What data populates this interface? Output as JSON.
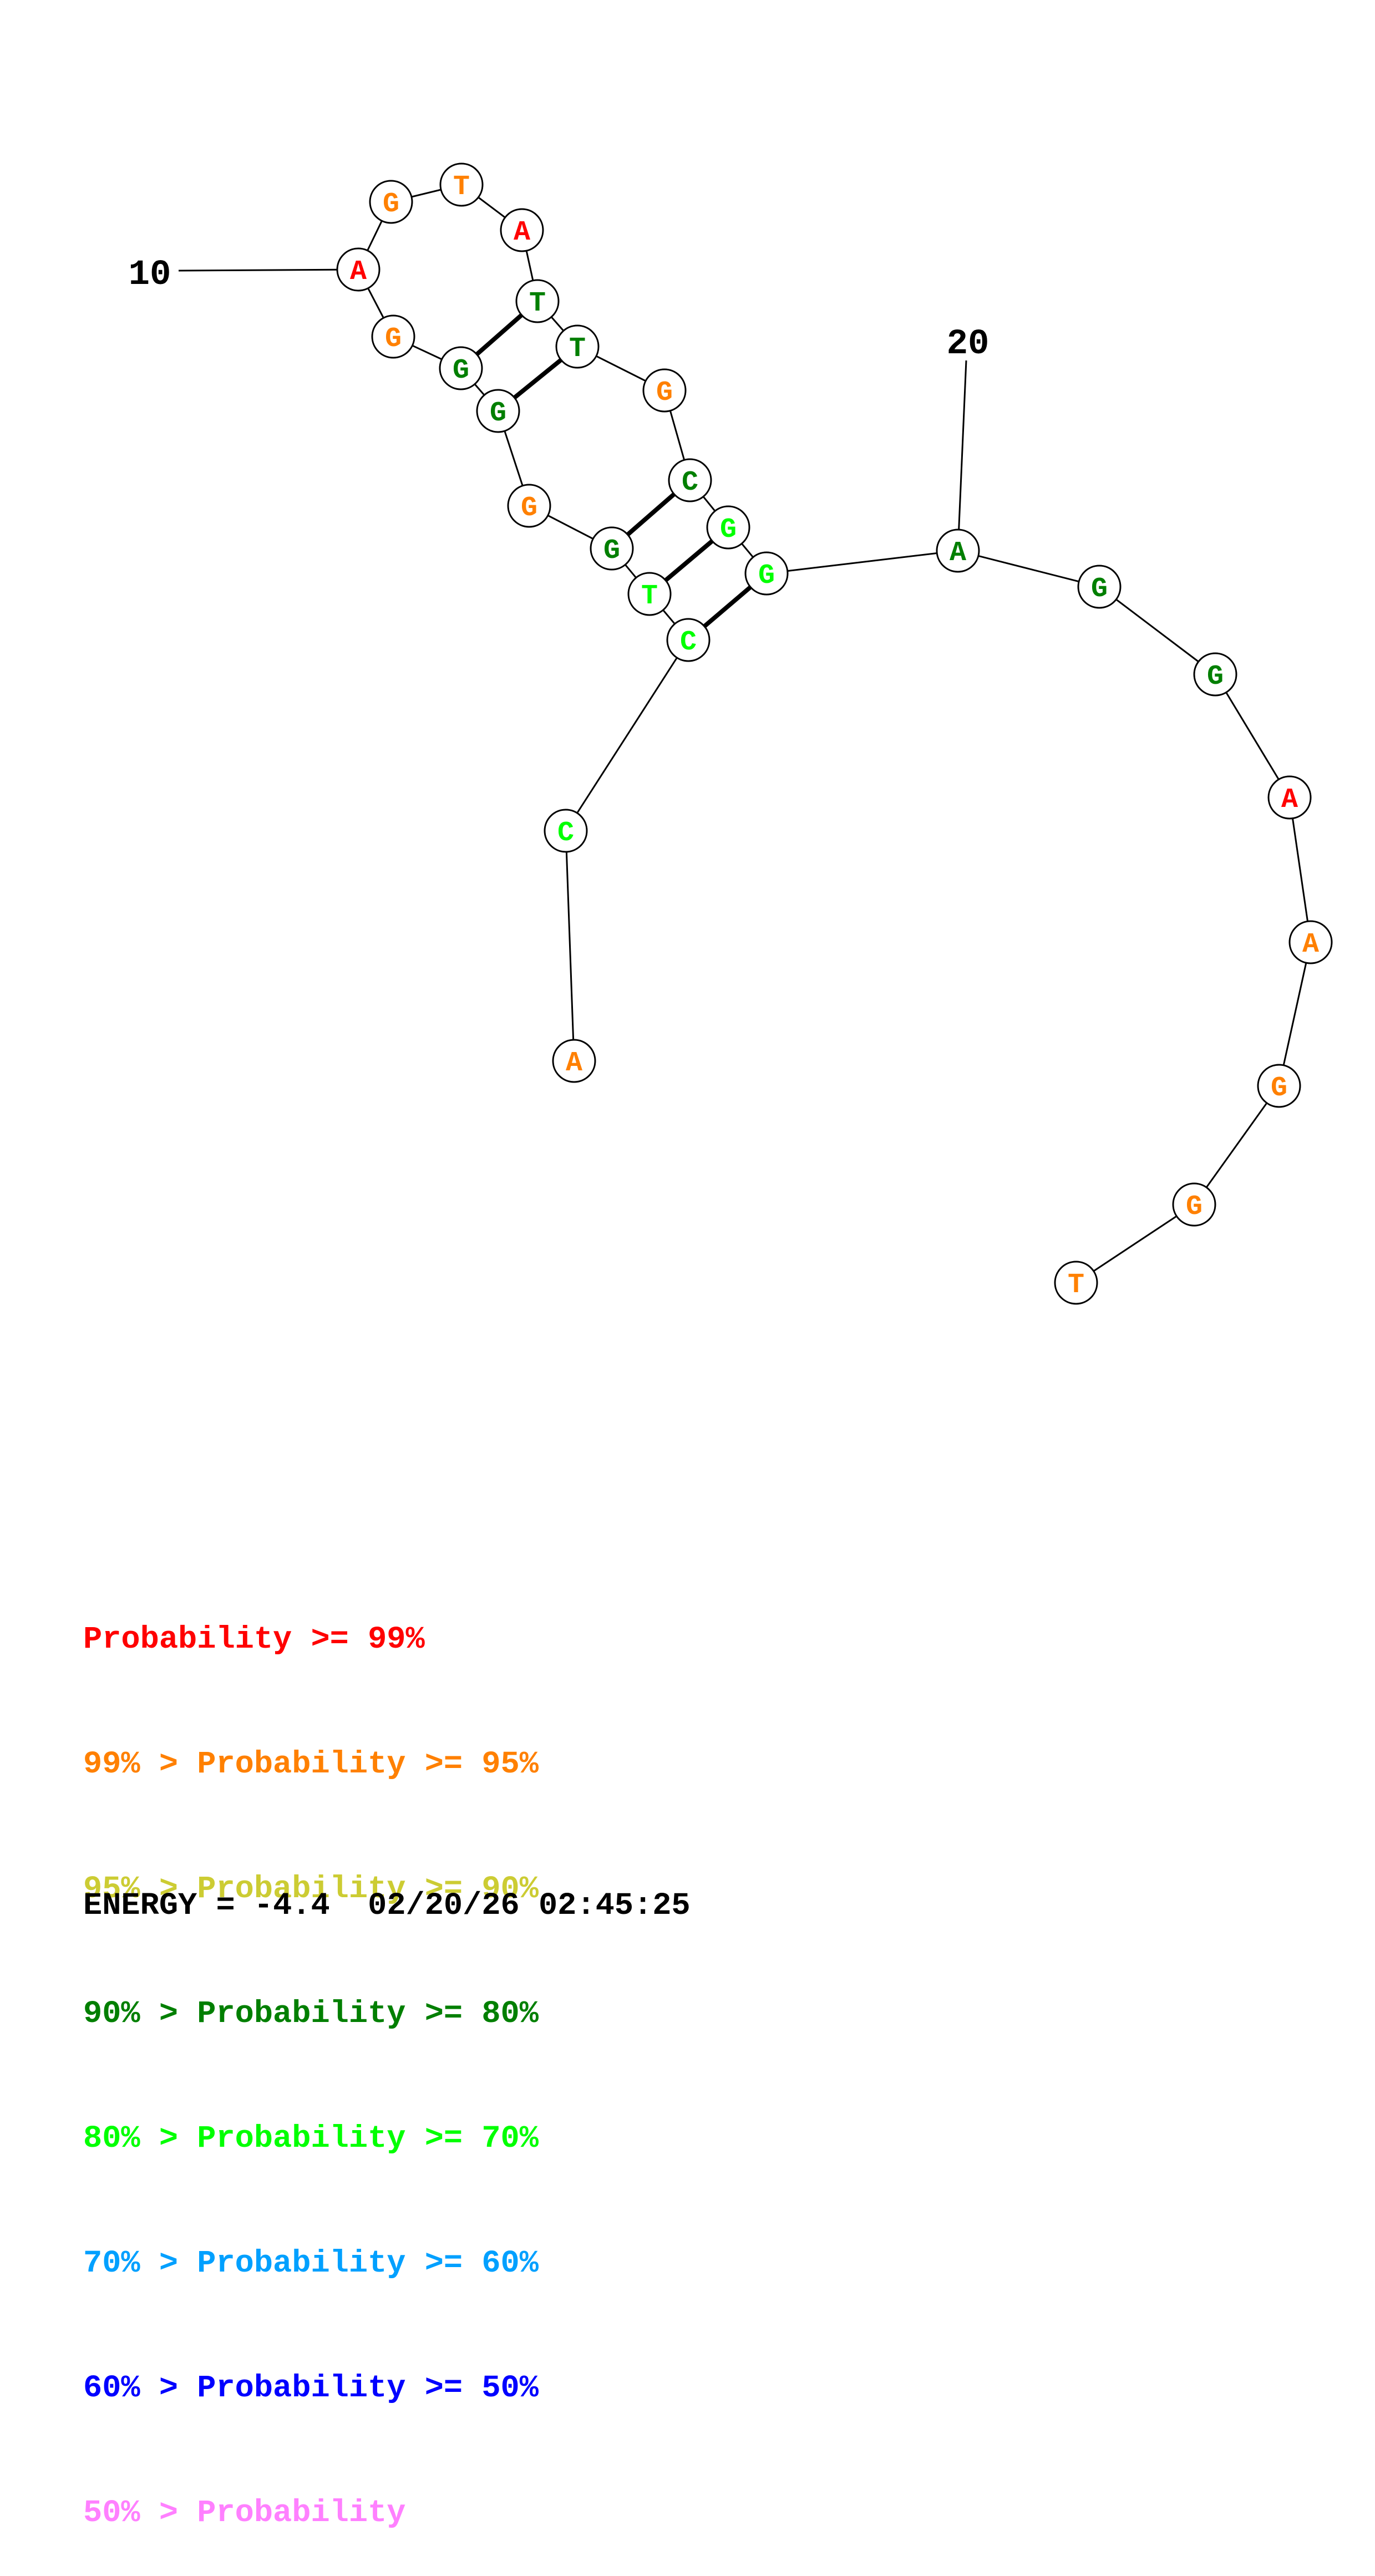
{
  "colors": {
    "red": "#ff0000",
    "orange": "#ff8000",
    "yellow": "#cccc33",
    "dark_green": "#007f00",
    "green": "#00ff00",
    "cyan": "#00a0ff",
    "blue": "#0000ff",
    "pink": "#ff80ff"
  },
  "structure": {
    "nucleotides": [
      {
        "index": 1,
        "base": "A",
        "color": "orange"
      },
      {
        "index": 2,
        "base": "C",
        "color": "green"
      },
      {
        "index": 3,
        "base": "C",
        "color": "green"
      },
      {
        "index": 4,
        "base": "T",
        "color": "green"
      },
      {
        "index": 5,
        "base": "G",
        "color": "dark_green"
      },
      {
        "index": 6,
        "base": "G",
        "color": "orange"
      },
      {
        "index": 7,
        "base": "G",
        "color": "dark_green"
      },
      {
        "index": 8,
        "base": "G",
        "color": "dark_green"
      },
      {
        "index": 9,
        "base": "G",
        "color": "orange"
      },
      {
        "index": 10,
        "base": "A",
        "color": "red"
      },
      {
        "index": 11,
        "base": "G",
        "color": "orange"
      },
      {
        "index": 12,
        "base": "T",
        "color": "orange"
      },
      {
        "index": 13,
        "base": "A",
        "color": "red"
      },
      {
        "index": 14,
        "base": "T",
        "color": "dark_green"
      },
      {
        "index": 15,
        "base": "T",
        "color": "dark_green"
      },
      {
        "index": 16,
        "base": "G",
        "color": "orange"
      },
      {
        "index": 17,
        "base": "C",
        "color": "dark_green"
      },
      {
        "index": 18,
        "base": "G",
        "color": "green"
      },
      {
        "index": 19,
        "base": "G",
        "color": "green"
      },
      {
        "index": 20,
        "base": "A",
        "color": "dark_green"
      },
      {
        "index": 21,
        "base": "G",
        "color": "dark_green"
      },
      {
        "index": 22,
        "base": "G",
        "color": "dark_green"
      },
      {
        "index": 23,
        "base": "A",
        "color": "red"
      },
      {
        "index": 24,
        "base": "A",
        "color": "orange"
      },
      {
        "index": 25,
        "base": "G",
        "color": "orange"
      },
      {
        "index": 26,
        "base": "G",
        "color": "orange"
      },
      {
        "index": 27,
        "base": "T",
        "color": "orange"
      }
    ],
    "pairs": [
      [
        3,
        19
      ],
      [
        4,
        18
      ],
      [
        5,
        17
      ],
      [
        7,
        15
      ],
      [
        8,
        14
      ]
    ],
    "position_labels": [
      {
        "number": "10",
        "index": 10
      },
      {
        "number": "20",
        "index": 20
      }
    ]
  },
  "legend": [
    {
      "prefix": "",
      "label": "Probability >= 99%",
      "color": "red"
    },
    {
      "prefix": "99% > ",
      "label": "Probability >= 95%",
      "color": "orange"
    },
    {
      "prefix": "95% > ",
      "label": "Probability >= 90%",
      "color": "yellow"
    },
    {
      "prefix": "90% > ",
      "label": "Probability >= 80%",
      "color": "dark_green"
    },
    {
      "prefix": "80% > ",
      "label": "Probability >= 70%",
      "color": "green"
    },
    {
      "prefix": "70% > ",
      "label": "Probability >= 60%",
      "color": "cyan"
    },
    {
      "prefix": "60% > ",
      "label": "Probability >= 50%",
      "color": "blue"
    },
    {
      "prefix": "50% > ",
      "label": "Probability",
      "color": "pink"
    }
  ],
  "energy": {
    "label": "ENERGY = ",
    "value": "-4.4",
    "timestamp": "02/20/26 02:45:25"
  }
}
